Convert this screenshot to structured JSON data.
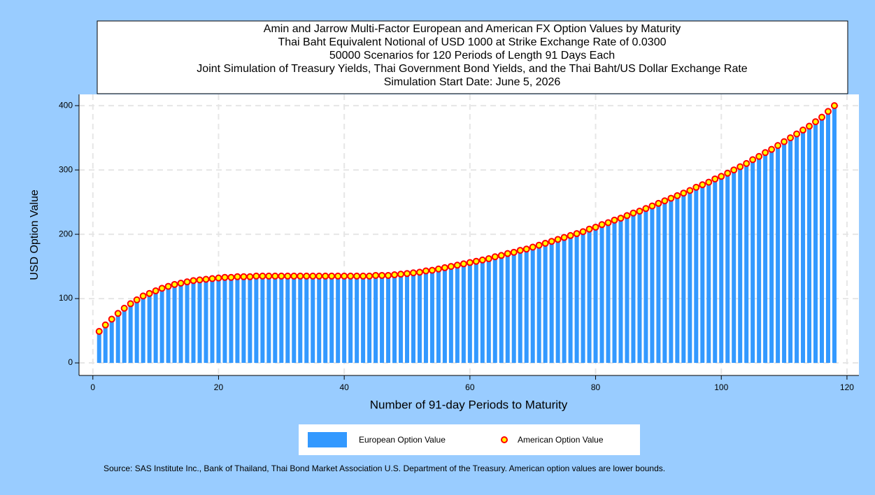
{
  "chart_data": {
    "type": "bar",
    "title": [
      "Amin and Jarrow Multi-Factor European and American FX Option Values by Maturity",
      "Thai Baht Equivalent Notional of USD 1000 at Strike Exchange Rate of  0.0300",
      "50000 Scenarios for 120 Periods of Length 91 Days Each",
      "Joint Simulation of Treasury Yields, Thai Government Bond Yields, and the Thai Baht/US Dollar Exchange Rate",
      "Simulation Start Date: June 5, 2026"
    ],
    "x_label": "Number of 91-day Periods to Maturity",
    "y_label": "USD Option Value",
    "source": "Source: SAS Institute Inc., Bank of Thailand, Thai Bond Market Association U.S. Department of the Treasury. American option values are lower bounds.",
    "x": [
      1,
      2,
      3,
      4,
      5,
      6,
      7,
      8,
      9,
      10,
      11,
      12,
      13,
      14,
      15,
      16,
      17,
      18,
      19,
      20,
      21,
      22,
      23,
      24,
      25,
      26,
      27,
      28,
      29,
      30,
      31,
      32,
      33,
      34,
      35,
      36,
      37,
      38,
      39,
      40,
      41,
      42,
      43,
      44,
      45,
      46,
      47,
      48,
      49,
      50,
      51,
      52,
      53,
      54,
      55,
      56,
      57,
      58,
      59,
      60,
      61,
      62,
      63,
      64,
      65,
      66,
      67,
      68,
      69,
      70,
      71,
      72,
      73,
      74,
      75,
      76,
      77,
      78,
      79,
      80,
      81,
      82,
      83,
      84,
      85,
      86,
      87,
      88,
      89,
      90,
      91,
      92,
      93,
      94,
      95,
      96,
      97,
      98,
      99,
      100,
      101,
      102,
      103,
      104,
      105,
      106,
      107,
      108,
      109,
      110,
      111,
      112,
      113,
      114,
      115,
      116,
      117,
      118
    ],
    "series": [
      {
        "name": "European Option Value",
        "type": "bar",
        "color": "#3399ff",
        "values": [
          47,
          57,
          66,
          75,
          83,
          90,
          96,
          102,
          106,
          110,
          114,
          117,
          120,
          122,
          124,
          126,
          127,
          128,
          129,
          130,
          131,
          131,
          132,
          132,
          132,
          133,
          133,
          133,
          133,
          133,
          133,
          133,
          133,
          133,
          133,
          133,
          133,
          133,
          133,
          133,
          133,
          133,
          133,
          133,
          134,
          134,
          134,
          135,
          136,
          137,
          138,
          139,
          141,
          142,
          144,
          146,
          148,
          150,
          152,
          154,
          156,
          158,
          160,
          163,
          165,
          168,
          170,
          173,
          175,
          178,
          181,
          184,
          187,
          190,
          193,
          196,
          199,
          202,
          206,
          209,
          213,
          216,
          220,
          223,
          227,
          231,
          234,
          238,
          242,
          246,
          250,
          254,
          258,
          262,
          266,
          271,
          275,
          279,
          284,
          288,
          293,
          298,
          303,
          308,
          314,
          319,
          325,
          330,
          336,
          342,
          348,
          354,
          360,
          366,
          373,
          380,
          389,
          398
        ]
      },
      {
        "name": "American Option Value",
        "type": "scatter",
        "color": "#ff0000",
        "fill": "#ffff00",
        "values": [
          49,
          59,
          68,
          77,
          85,
          92,
          98,
          104,
          108,
          112,
          116,
          119,
          122,
          124,
          126,
          128,
          129,
          130,
          131,
          132,
          133,
          133,
          134,
          134,
          134,
          135,
          135,
          135,
          135,
          135,
          135,
          135,
          135,
          135,
          135,
          135,
          135,
          135,
          135,
          135,
          135,
          135,
          135,
          135,
          136,
          136,
          136,
          137,
          138,
          139,
          140,
          141,
          143,
          144,
          146,
          148,
          150,
          152,
          154,
          156,
          158,
          160,
          162,
          165,
          167,
          170,
          172,
          175,
          177,
          180,
          183,
          186,
          189,
          192,
          195,
          198,
          201,
          204,
          208,
          211,
          215,
          218,
          222,
          225,
          229,
          233,
          236,
          240,
          244,
          248,
          252,
          256,
          260,
          264,
          268,
          273,
          277,
          281,
          286,
          290,
          295,
          300,
          305,
          310,
          316,
          321,
          327,
          332,
          338,
          344,
          350,
          356,
          362,
          368,
          375,
          382,
          391,
          400
        ]
      }
    ],
    "xlim": [
      -2.2,
      121.9
    ],
    "xticks": [
      0,
      20,
      40,
      60,
      80,
      100,
      120
    ],
    "ylim": [
      -19.5,
      417.5
    ],
    "yticks": [
      0,
      100,
      200,
      300,
      400
    ],
    "grid": true
  }
}
